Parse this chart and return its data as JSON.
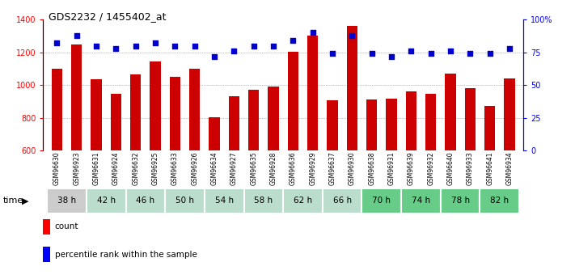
{
  "title": "GDS2232 / 1455402_at",
  "samples": [
    "GSM96630",
    "GSM96923",
    "GSM96631",
    "GSM96924",
    "GSM96632",
    "GSM96925",
    "GSM96633",
    "GSM96926",
    "GSM96634",
    "GSM96927",
    "GSM96635",
    "GSM96928",
    "GSM96636",
    "GSM96929",
    "GSM96637",
    "GSM96930",
    "GSM96638",
    "GSM96931",
    "GSM96639",
    "GSM96932",
    "GSM96640",
    "GSM96933",
    "GSM96641",
    "GSM96934"
  ],
  "counts": [
    1100,
    1250,
    1035,
    945,
    1065,
    1145,
    1050,
    1100,
    805,
    930,
    970,
    990,
    1205,
    1300,
    905,
    1360,
    910,
    915,
    960,
    945,
    1070,
    980,
    875,
    1040
  ],
  "percentile_ranks": [
    82,
    88,
    80,
    78,
    80,
    82,
    80,
    80,
    72,
    76,
    80,
    80,
    84,
    90,
    74,
    88,
    74,
    72,
    76,
    74,
    76,
    74,
    74,
    78
  ],
  "time_group_labels": [
    "38 h",
    "42 h",
    "46 h",
    "50 h",
    "54 h",
    "58 h",
    "62 h",
    "66 h",
    "70 h",
    "74 h",
    "78 h",
    "82 h"
  ],
  "time_group_starts": [
    0,
    2,
    4,
    6,
    8,
    10,
    12,
    14,
    16,
    18,
    20,
    22
  ],
  "time_group_ends": [
    2,
    4,
    6,
    8,
    10,
    12,
    14,
    16,
    18,
    20,
    22,
    24
  ],
  "time_group_colors": [
    "#cccccc",
    "#bbddcc",
    "#bbddcc",
    "#bbddcc",
    "#bbddcc",
    "#bbddcc",
    "#bbddcc",
    "#bbddcc",
    "#66cc88",
    "#66cc88",
    "#66cc88",
    "#66cc88"
  ],
  "bar_color": "#cc0000",
  "dot_color": "#0000cc",
  "ylim_left": [
    600,
    1400
  ],
  "ylim_right": [
    0,
    100
  ],
  "yticks_left": [
    600,
    800,
    1000,
    1200,
    1400
  ],
  "yticks_right": [
    0,
    25,
    50,
    75,
    100
  ],
  "ytick_labels_right": [
    "0",
    "25",
    "50",
    "75",
    "100%"
  ],
  "grid_values": [
    800,
    1000,
    1200
  ],
  "bg_color": "#ffffff"
}
